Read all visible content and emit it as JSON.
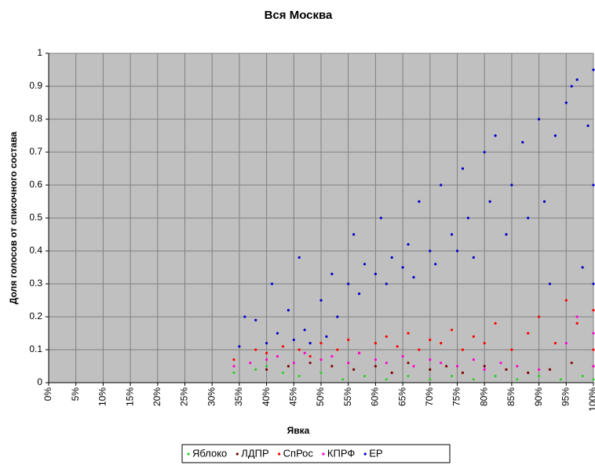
{
  "chart_data": {
    "type": "scatter",
    "title": "Вся Москва",
    "x_label": "Явка",
    "y_label": "Доля голосов от списочного состава",
    "xlim": [
      0,
      100
    ],
    "ylim": [
      0,
      1
    ],
    "xticks": [
      {
        "value": 0,
        "label": "0%"
      },
      {
        "value": 5,
        "label": "5%"
      },
      {
        "value": 10,
        "label": "10%"
      },
      {
        "value": 15,
        "label": "15%"
      },
      {
        "value": 20,
        "label": "20%"
      },
      {
        "value": 25,
        "label": "25%"
      },
      {
        "value": 30,
        "label": "30%"
      },
      {
        "value": 35,
        "label": "35%"
      },
      {
        "value": 40,
        "label": "40%"
      },
      {
        "value": 45,
        "label": "45%"
      },
      {
        "value": 50,
        "label": "50%"
      },
      {
        "value": 55,
        "label": "55%"
      },
      {
        "value": 60,
        "label": "60%"
      },
      {
        "value": 65,
        "label": "65%"
      },
      {
        "value": 70,
        "label": "70%"
      },
      {
        "value": 75,
        "label": "75%"
      },
      {
        "value": 80,
        "label": "80%"
      },
      {
        "value": 85,
        "label": "85%"
      },
      {
        "value": 90,
        "label": "90%"
      },
      {
        "value": 95,
        "label": "95%"
      },
      {
        "value": 100,
        "label": "100%"
      }
    ],
    "yticks": [
      0,
      0.1,
      0.2,
      0.3,
      0.4,
      0.5,
      0.6,
      0.7,
      0.8,
      0.9,
      1
    ],
    "grid": true,
    "legend": "bottom",
    "series": [
      {
        "name": "Яблоко",
        "color": "#33cc33",
        "x": [
          34,
          38,
          40,
          43,
          46,
          50,
          54,
          58,
          62,
          66,
          70,
          74,
          78,
          82,
          86,
          90,
          94,
          98,
          100
        ],
        "values": [
          0.03,
          0.04,
          0.05,
          0.03,
          0.02,
          0.03,
          0.01,
          0.02,
          0.01,
          0.02,
          0.01,
          0.02,
          0.01,
          0.02,
          0.01,
          0.02,
          0.01,
          0.02,
          0.01
        ]
      },
      {
        "name": "ЛДПР",
        "color": "#800000",
        "x": [
          40,
          44,
          48,
          52,
          56,
          60,
          63,
          66,
          70,
          73,
          76,
          80,
          84,
          88,
          92,
          96,
          100
        ],
        "values": [
          0.04,
          0.05,
          0.06,
          0.05,
          0.04,
          0.05,
          0.03,
          0.06,
          0.04,
          0.05,
          0.03,
          0.05,
          0.04,
          0.03,
          0.04,
          0.06,
          0.05
        ]
      },
      {
        "name": "СпРос",
        "color": "#ff0000",
        "x": [
          34,
          38,
          40,
          43,
          46,
          48,
          50,
          53,
          55,
          57,
          60,
          62,
          64,
          66,
          68,
          70,
          72,
          74,
          76,
          78,
          80,
          82,
          85,
          88,
          90,
          93,
          95,
          97,
          100,
          100
        ],
        "values": [
          0.07,
          0.1,
          0.09,
          0.11,
          0.1,
          0.08,
          0.12,
          0.1,
          0.13,
          0.09,
          0.12,
          0.14,
          0.11,
          0.15,
          0.1,
          0.13,
          0.12,
          0.16,
          0.1,
          0.14,
          0.12,
          0.18,
          0.1,
          0.15,
          0.2,
          0.12,
          0.25,
          0.18,
          0.22,
          0.1
        ]
      },
      {
        "name": "КПРФ",
        "color": "#ff00cc",
        "x": [
          34,
          37,
          40,
          42,
          45,
          47,
          50,
          52,
          55,
          57,
          60,
          62,
          65,
          67,
          70,
          72,
          75,
          78,
          80,
          83,
          86,
          90,
          95,
          97,
          100,
          100
        ],
        "values": [
          0.05,
          0.06,
          0.07,
          0.08,
          0.06,
          0.09,
          0.07,
          0.08,
          0.06,
          0.09,
          0.07,
          0.06,
          0.08,
          0.05,
          0.07,
          0.06,
          0.05,
          0.07,
          0.04,
          0.06,
          0.05,
          0.04,
          0.12,
          0.2,
          0.15,
          0.05
        ]
      },
      {
        "name": "ЕР",
        "color": "#0000cc",
        "x": [
          35,
          36,
          38,
          40,
          41,
          42,
          44,
          45,
          46,
          47,
          48,
          50,
          51,
          52,
          53,
          55,
          56,
          57,
          58,
          60,
          61,
          62,
          63,
          65,
          66,
          67,
          68,
          70,
          71,
          72,
          74,
          75,
          76,
          77,
          78,
          80,
          81,
          82,
          84,
          85,
          87,
          88,
          90,
          91,
          92,
          93,
          95,
          96,
          97,
          98,
          99,
          100,
          100,
          100
        ],
        "values": [
          0.11,
          0.2,
          0.19,
          0.12,
          0.3,
          0.15,
          0.22,
          0.13,
          0.38,
          0.16,
          0.12,
          0.25,
          0.14,
          0.33,
          0.2,
          0.3,
          0.45,
          0.27,
          0.36,
          0.33,
          0.5,
          0.3,
          0.38,
          0.35,
          0.42,
          0.32,
          0.55,
          0.4,
          0.36,
          0.6,
          0.45,
          0.4,
          0.65,
          0.5,
          0.38,
          0.7,
          0.55,
          0.75,
          0.45,
          0.6,
          0.73,
          0.5,
          0.8,
          0.55,
          0.3,
          0.75,
          0.85,
          0.9,
          0.92,
          0.35,
          0.78,
          0.95,
          0.6,
          0.3
        ]
      }
    ]
  }
}
